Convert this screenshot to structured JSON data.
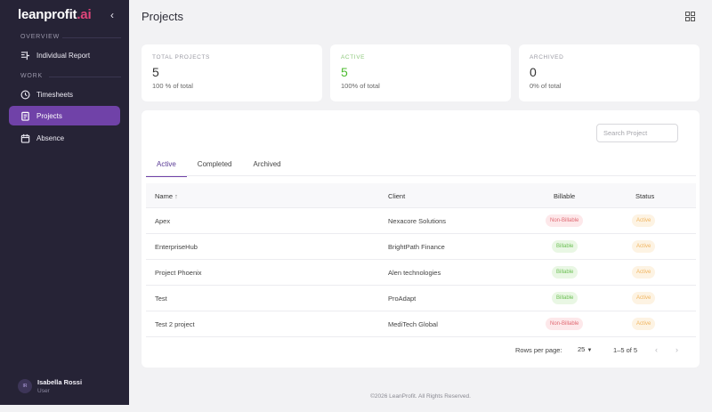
{
  "brand": {
    "name": "leanprofit",
    "suffix": ".ai"
  },
  "sidebar": {
    "overview_label": "OVERVIEW",
    "work_label": "WORK",
    "items": [
      {
        "label": "Individual Report",
        "icon": "report-icon"
      },
      {
        "label": "Timesheets",
        "icon": "clock-icon"
      },
      {
        "label": "Projects",
        "icon": "clipboard-icon",
        "active": true
      },
      {
        "label": "Absence",
        "icon": "calendar-icon"
      }
    ]
  },
  "user": {
    "initials": "IR",
    "name": "Isabella Rossi",
    "role": "User"
  },
  "header": {
    "title": "Projects"
  },
  "stats": [
    {
      "label": "TOTAL PROJECTS",
      "value": "5",
      "sub": "100 % of total"
    },
    {
      "label": "ACTIVE",
      "value": "5",
      "sub": "100% of total",
      "color": "#4cbb2f"
    },
    {
      "label": "ARCHIVED",
      "value": "0",
      "sub": "0% of total"
    }
  ],
  "search": {
    "placeholder": "Search Project"
  },
  "tabs": [
    "Active",
    "Completed",
    "Archived"
  ],
  "table": {
    "columns": [
      "Name",
      "Client",
      "Billable",
      "Status"
    ],
    "sort_indicator": "↑",
    "rows": [
      {
        "name": "Apex",
        "client": "Nexacore Solutions",
        "billable": "Non-Billable",
        "status": "Active"
      },
      {
        "name": "EnterpriseHub",
        "client": "BrightPath Finance",
        "billable": "Billable",
        "status": "Active"
      },
      {
        "name": "Project Phoenix",
        "client": "Alen technologies",
        "billable": "Billable",
        "status": "Active"
      },
      {
        "name": "Test",
        "client": "ProAdapt",
        "billable": "Billable",
        "status": "Active"
      },
      {
        "name": "Test 2 project",
        "client": "MediTech Global",
        "billable": "Non-Billable",
        "status": "Active"
      }
    ]
  },
  "pagination": {
    "rows_label": "Rows per page:",
    "rows_value": "25",
    "range": "1–5 of 5"
  },
  "footer": {
    "text": "©2026 LeanProfit. All Rights Reserved."
  },
  "colors": {
    "sidebar": "#262336",
    "accent": "#7042a8",
    "green": "#4cbb2f"
  }
}
